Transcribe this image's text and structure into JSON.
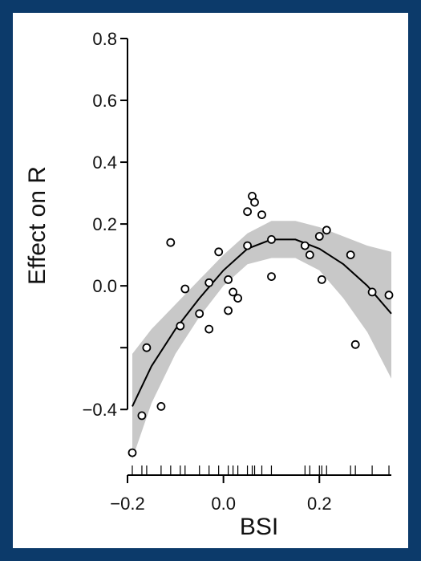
{
  "chart_data": {
    "type": "scatter",
    "title": "",
    "xlabel": "BSI",
    "ylabel": "Effect on R",
    "xlim": [
      -0.2,
      0.36
    ],
    "ylim": [
      -0.55,
      0.8
    ],
    "xticks": [
      -0.2,
      0.0,
      0.2
    ],
    "xtick_labels": [
      "−0.2",
      "0.0",
      "0.2"
    ],
    "yticks": [
      -0.4,
      -0.2,
      0.0,
      0.2,
      0.4,
      0.6,
      0.8
    ],
    "ytick_labels": [
      "−0.4",
      "",
      "0.0",
      "0.2",
      "0.4",
      "0.6",
      "0.8"
    ],
    "grid": false,
    "colors": {
      "points": "#000000",
      "fit": "#000000",
      "band": "#c8c8c8",
      "frame": "#0c3a6a"
    },
    "points": [
      {
        "x": -0.19,
        "y": -0.54
      },
      {
        "x": -0.17,
        "y": -0.42
      },
      {
        "x": -0.16,
        "y": -0.2
      },
      {
        "x": -0.13,
        "y": -0.39
      },
      {
        "x": -0.11,
        "y": 0.14
      },
      {
        "x": -0.09,
        "y": -0.13
      },
      {
        "x": -0.08,
        "y": -0.01
      },
      {
        "x": -0.05,
        "y": -0.09
      },
      {
        "x": -0.03,
        "y": -0.14
      },
      {
        "x": -0.03,
        "y": 0.01
      },
      {
        "x": -0.01,
        "y": 0.11
      },
      {
        "x": 0.01,
        "y": 0.02
      },
      {
        "x": 0.01,
        "y": -0.08
      },
      {
        "x": 0.02,
        "y": -0.02
      },
      {
        "x": 0.03,
        "y": -0.04
      },
      {
        "x": 0.05,
        "y": 0.13
      },
      {
        "x": 0.05,
        "y": 0.24
      },
      {
        "x": 0.06,
        "y": 0.29
      },
      {
        "x": 0.065,
        "y": 0.27
      },
      {
        "x": 0.08,
        "y": 0.23
      },
      {
        "x": 0.1,
        "y": 0.15
      },
      {
        "x": 0.1,
        "y": 0.03
      },
      {
        "x": 0.17,
        "y": 0.13
      },
      {
        "x": 0.18,
        "y": 0.1
      },
      {
        "x": 0.2,
        "y": 0.16
      },
      {
        "x": 0.205,
        "y": 0.02
      },
      {
        "x": 0.215,
        "y": 0.18
      },
      {
        "x": 0.265,
        "y": 0.1
      },
      {
        "x": 0.275,
        "y": -0.19
      },
      {
        "x": 0.31,
        "y": -0.02
      },
      {
        "x": 0.345,
        "y": -0.03
      }
    ],
    "fit_line": {
      "x": [
        -0.19,
        -0.15,
        -0.1,
        -0.05,
        0.0,
        0.05,
        0.1,
        0.15,
        0.2,
        0.25,
        0.3,
        0.35
      ],
      "y": [
        -0.39,
        -0.26,
        -0.14,
        -0.04,
        0.05,
        0.12,
        0.15,
        0.15,
        0.12,
        0.07,
        0.0,
        -0.09
      ]
    },
    "confidence_band": {
      "x": [
        -0.19,
        -0.15,
        -0.1,
        -0.05,
        0.0,
        0.05,
        0.1,
        0.15,
        0.2,
        0.25,
        0.3,
        0.35
      ],
      "lower": [
        -0.56,
        -0.38,
        -0.22,
        -0.1,
        0.0,
        0.07,
        0.09,
        0.09,
        0.05,
        -0.04,
        -0.15,
        -0.3
      ],
      "upper": [
        -0.22,
        -0.14,
        -0.06,
        0.02,
        0.1,
        0.17,
        0.21,
        0.21,
        0.19,
        0.16,
        0.13,
        0.11
      ]
    },
    "rug_x": [
      -0.19,
      -0.17,
      -0.16,
      -0.13,
      -0.11,
      -0.09,
      -0.08,
      -0.05,
      -0.03,
      -0.01,
      0.01,
      0.02,
      0.03,
      0.05,
      0.06,
      0.065,
      0.08,
      0.1,
      0.17,
      0.18,
      0.2,
      0.205,
      0.215,
      0.265,
      0.275,
      0.31,
      0.345
    ]
  }
}
